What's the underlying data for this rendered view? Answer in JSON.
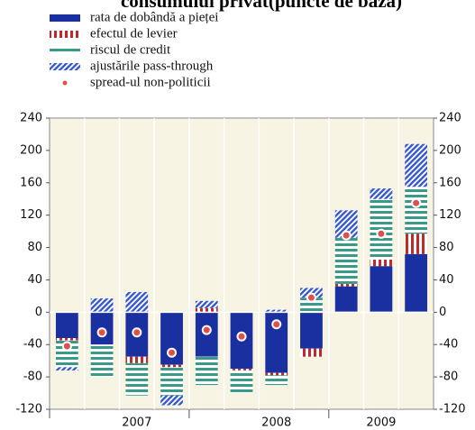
{
  "chart_data": {
    "type": "bar",
    "stacked": true,
    "title": "consumului privat(puncte de bază)",
    "categories": [
      null,
      null,
      "2007",
      null,
      null,
      null,
      "2008",
      null,
      null,
      "2009",
      null
    ],
    "series": [
      {
        "name": "rata de dobândă a pieței",
        "color": "#1a2fa0",
        "pattern": "solid",
        "values": [
          -32,
          -40,
          -55,
          -65,
          -55,
          -70,
          -75,
          -45,
          32,
          57,
          72
        ]
      },
      {
        "name": "efectul de levier",
        "color": "#c0282a",
        "pattern": "dotted",
        "values": [
          -3,
          0,
          -8,
          -3,
          5,
          -2,
          -3,
          -10,
          3,
          8,
          25
        ]
      },
      {
        "name": "riscul de credit",
        "color": "#3a9a8a",
        "pattern": "horizontal",
        "values": [
          -33,
          -40,
          -40,
          -35,
          -35,
          -28,
          -12,
          18,
          57,
          75,
          58
        ]
      },
      {
        "name": "ajustările pass-through",
        "color": "#3a5ad0",
        "pattern": "diagonal",
        "values": [
          -4,
          17,
          25,
          -12,
          9,
          0,
          3,
          12,
          34,
          13,
          53
        ]
      },
      {
        "name": "spread-ul non-politicii",
        "color": "#e0504a",
        "type": "scatter",
        "values": [
          -42,
          -25,
          -25,
          -50,
          -22,
          -30,
          -15,
          18,
          95,
          97,
          135
        ]
      }
    ],
    "ylim": [
      -120,
      240
    ],
    "yticks": [
      -120,
      -80,
      -40,
      0,
      40,
      80,
      120,
      160,
      200,
      240
    ],
    "y2lim": [
      -120,
      240
    ],
    "y2ticks": [
      -120,
      -80,
      -40,
      0,
      40,
      80,
      120,
      160,
      200,
      240
    ],
    "background": "#f7f4e4"
  }
}
